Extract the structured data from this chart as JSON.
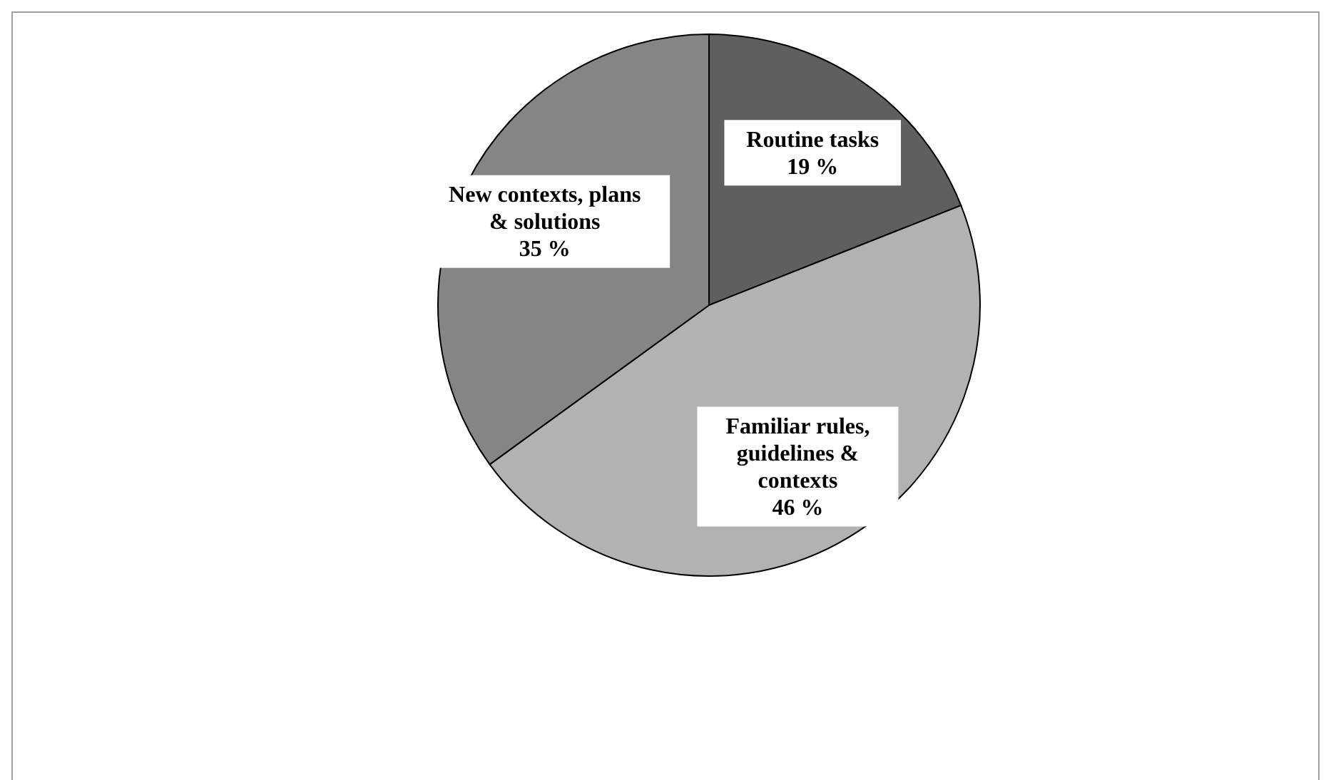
{
  "chart_data": {
    "type": "pie",
    "categories": [
      "Routine tasks",
      "Familiar rules, guidelines & contexts",
      "New contexts, plans & solutions"
    ],
    "values": [
      19,
      46,
      35
    ],
    "value_labels": [
      "19 %",
      "46 %",
      "35 %"
    ],
    "colors": [
      "#5f5f5f",
      "#b2b2b2",
      "#858585"
    ]
  }
}
